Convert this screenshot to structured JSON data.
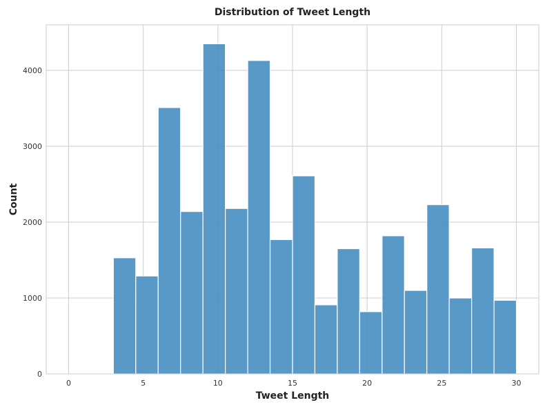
{
  "chart_data": {
    "type": "bar",
    "title": "Distribution of Tweet Length",
    "xlabel": "Tweet Length",
    "ylabel": "Count",
    "xlim": [
      -1.5,
      31.5
    ],
    "ylim": [
      0,
      4600
    ],
    "xticks": [
      0,
      5,
      10,
      15,
      20,
      25,
      30
    ],
    "yticks": [
      0,
      1000,
      2000,
      3000,
      4000
    ],
    "grid": true,
    "bar_color": "#4a90c2",
    "bins": [
      {
        "x0": 3.0,
        "x1": 4.5,
        "value": 1530
      },
      {
        "x0": 4.5,
        "x1": 6.0,
        "value": 1290
      },
      {
        "x0": 6.0,
        "x1": 7.5,
        "value": 3510
      },
      {
        "x0": 7.5,
        "x1": 9.0,
        "value": 2140
      },
      {
        "x0": 9.0,
        "x1": 10.5,
        "value": 4350
      },
      {
        "x0": 10.5,
        "x1": 12.0,
        "value": 2180
      },
      {
        "x0": 12.0,
        "x1": 13.5,
        "value": 4130
      },
      {
        "x0": 13.5,
        "x1": 15.0,
        "value": 1770
      },
      {
        "x0": 15.0,
        "x1": 16.5,
        "value": 2610
      },
      {
        "x0": 16.5,
        "x1": 18.0,
        "value": 910
      },
      {
        "x0": 18.0,
        "x1": 19.5,
        "value": 1650
      },
      {
        "x0": 19.5,
        "x1": 21.0,
        "value": 820
      },
      {
        "x0": 21.0,
        "x1": 22.5,
        "value": 1820
      },
      {
        "x0": 22.5,
        "x1": 24.0,
        "value": 1100
      },
      {
        "x0": 24.0,
        "x1": 25.5,
        "value": 2230
      },
      {
        "x0": 25.5,
        "x1": 27.0,
        "value": 1000
      },
      {
        "x0": 27.0,
        "x1": 28.5,
        "value": 1660
      },
      {
        "x0": 28.5,
        "x1": 30.0,
        "value": 970
      }
    ]
  }
}
